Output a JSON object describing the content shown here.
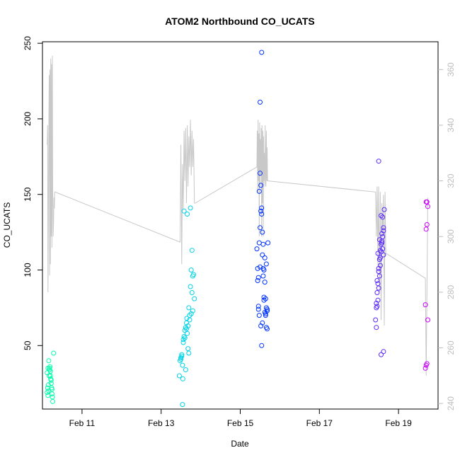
{
  "chart_data": {
    "type": "scatter",
    "title": "ATOM2 Northbound CO_UCATS",
    "xlabel": "Date",
    "ylabel": "CO_UCATS",
    "x_axis": {
      "ticks": [
        "Feb 11",
        "Feb 13",
        "Feb 15",
        "Feb 17",
        "Feb 19"
      ],
      "tick_days": [
        11,
        13,
        15,
        17,
        19
      ],
      "range_days": [
        10.0,
        20.0
      ]
    },
    "y_axis": {
      "ticks": [
        "50",
        "100",
        "150",
        "200",
        "250"
      ],
      "tick_values": [
        50,
        100,
        150,
        200,
        250
      ],
      "range": [
        8,
        251
      ]
    },
    "y2_axis": {
      "ticks": [
        "240",
        "260",
        "280",
        "300",
        "320",
        "340",
        "360"
      ],
      "tick_values": [
        240,
        260,
        280,
        300,
        320,
        340,
        360
      ],
      "range": [
        238,
        370
      ],
      "color": "#bdbdbd"
    },
    "grid": false,
    "line_color": "#c8c8c8",
    "point_colors": [
      "#00ffaa",
      "#00d3e6",
      "#0033ff",
      "#5a28ff",
      "#cc00ff"
    ],
    "groups": [
      {
        "color": "#00ffaa",
        "days": [
          10.12,
          10.13,
          10.14,
          10.15,
          10.16,
          10.17,
          10.18,
          10.19,
          10.2,
          10.21,
          10.22,
          10.23,
          10.24,
          10.25,
          10.26,
          10.12,
          10.14,
          10.16,
          10.18,
          10.2,
          10.22,
          10.24,
          10.28
        ],
        "values": [
          19,
          22,
          17,
          24,
          20,
          30,
          34,
          36,
          33,
          28,
          25,
          22,
          18,
          16,
          13,
          32,
          35,
          40,
          35,
          30,
          27,
          21,
          45
        ]
      },
      {
        "color": "#00d3e6",
        "days": [
          13.46,
          13.48,
          13.5,
          13.52,
          13.54,
          13.55,
          13.56,
          13.58,
          13.6,
          13.62,
          13.64,
          13.65,
          13.66,
          13.68,
          13.7,
          13.72,
          13.74,
          13.76,
          13.78,
          13.8,
          13.82,
          13.84,
          13.5,
          13.52,
          13.56,
          13.6,
          13.64,
          13.68,
          13.72,
          13.76,
          13.8,
          13.54,
          13.62,
          13.7,
          13.78,
          13.58,
          13.66,
          13.74
        ],
        "values": [
          30,
          40,
          42,
          44,
          37,
          28,
          54,
          56,
          60,
          62,
          65,
          68,
          58,
          48,
          75,
          70,
          89,
          100,
          85,
          96,
          97,
          81,
          41,
          43,
          52,
          55,
          61,
          63,
          67,
          71,
          73,
          11,
          34,
          45,
          113,
          139,
          137,
          141
        ]
      },
      {
        "color": "#0033ff",
        "days": [
          15.42,
          15.44,
          15.46,
          15.48,
          15.5,
          15.52,
          15.54,
          15.56,
          15.58,
          15.6,
          15.62,
          15.64,
          15.66,
          15.68,
          15.44,
          15.46,
          15.48,
          15.5,
          15.52,
          15.54,
          15.56,
          15.58,
          15.6,
          15.62,
          15.64,
          15.66,
          15.68,
          15.46,
          15.5,
          15.54,
          15.58,
          15.62,
          15.66,
          15.7,
          15.48,
          15.52,
          15.56,
          15.6,
          15.64,
          15.68,
          15.5,
          15.54
        ],
        "values": [
          114,
          101,
          95,
          118,
          128,
          139,
          137,
          110,
          101,
          100,
          92,
          81,
          75,
          73,
          93,
          74,
          152,
          164,
          156,
          141,
          125,
          96,
          80,
          72,
          70,
          62,
          61,
          76,
          211,
          244,
          117,
          108,
          104,
          118,
          70,
          63,
          65,
          82,
          71,
          74,
          102,
          50
        ]
      },
      {
        "color": "#5a28ff",
        "days": [
          18.42,
          18.44,
          18.46,
          18.48,
          18.5,
          18.52,
          18.54,
          18.56,
          18.58,
          18.6,
          18.62,
          18.64,
          18.44,
          18.46,
          18.48,
          18.5,
          18.52,
          18.54,
          18.56,
          18.58,
          18.6,
          18.62,
          18.46,
          18.5,
          18.54,
          18.58,
          18.62,
          18.48,
          18.52,
          18.56,
          18.6,
          18.44,
          18.5,
          18.56,
          18.62
        ],
        "values": [
          67,
          62,
          76,
          80,
          88,
          96,
          103,
          112,
          118,
          122,
          128,
          140,
          75,
          85,
          91,
          99,
          107,
          113,
          117,
          124,
          114,
          110,
          93,
          101,
          108,
          119,
          126,
          111,
          120,
          136,
          135,
          78,
          172,
          44,
          46
        ]
      },
      {
        "color": "#cc00ff",
        "days": [
          19.68,
          19.7,
          19.72,
          19.74,
          19.68,
          19.7,
          19.72,
          19.74,
          19.7,
          19.72
        ],
        "values": [
          35,
          37,
          38,
          67,
          77,
          127,
          130,
          142,
          145,
          145
        ]
      }
    ],
    "line_series": {
      "axis": "right",
      "days": [
        10.12,
        10.13,
        10.14,
        10.16,
        10.17,
        10.18,
        10.19,
        10.2,
        10.21,
        10.22,
        10.23,
        10.24,
        10.25,
        10.26,
        10.27,
        10.28,
        10.29,
        10.3,
        10.31,
        10.32,
        13.48,
        13.5,
        13.52,
        13.54,
        13.56,
        13.58,
        13.6,
        13.62,
        13.64,
        13.66,
        13.68,
        13.7,
        13.72,
        13.74,
        13.76,
        13.78,
        13.8,
        13.82,
        13.84,
        13.86,
        15.42,
        15.43,
        15.44,
        15.45,
        15.46,
        15.47,
        15.48,
        15.49,
        15.5,
        15.51,
        15.52,
        15.53,
        15.54,
        15.55,
        15.56,
        15.57,
        15.58,
        15.59,
        15.6,
        15.61,
        15.62,
        15.63,
        15.64,
        15.65,
        15.66,
        15.67,
        15.68,
        15.69,
        15.7,
        18.42,
        18.44,
        18.46,
        18.48,
        18.5,
        18.52,
        18.54,
        18.56,
        18.58,
        18.6,
        18.62,
        18.64,
        18.66,
        18.68,
        19.68,
        19.7,
        19.72,
        19.74
      ],
      "values": [
        333,
        340,
        280,
        336,
        358,
        286,
        360,
        290,
        364,
        300,
        362,
        296,
        365,
        316,
        300,
        305,
        314,
        310,
        316,
        316,
        298,
        333,
        290,
        326,
        310,
        338,
        320,
        339,
        312,
        340,
        318,
        336,
        325,
        342,
        322,
        338,
        325,
        335,
        312,
        312,
        325,
        338,
        316,
        342,
        320,
        337,
        300,
        341,
        318,
        335,
        322,
        339,
        300,
        340,
        312,
        338,
        300,
        336,
        320,
        330,
        318,
        340,
        322,
        318,
        338,
        320,
        332,
        320,
        320,
        316,
        300,
        318,
        290,
        318,
        280,
        316,
        270,
        312,
        300,
        315,
        268,
        316,
        294,
        285,
        250,
        280,
        314
      ]
    }
  }
}
